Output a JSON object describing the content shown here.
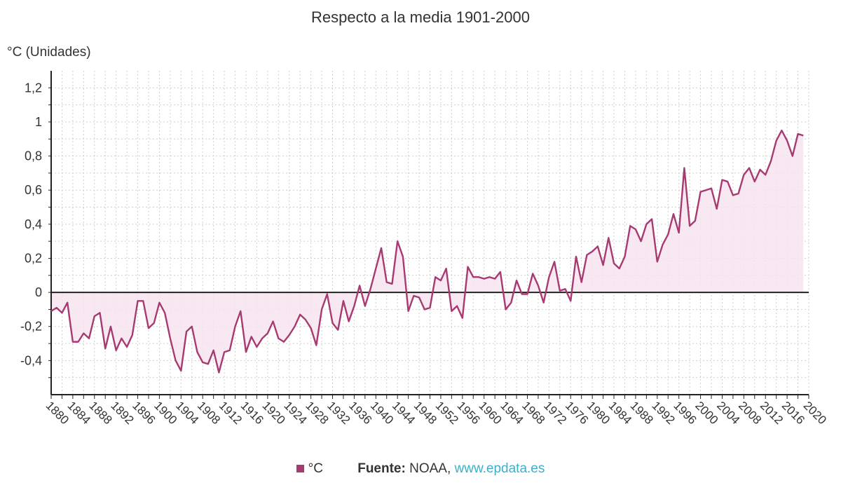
{
  "chart_data": {
    "type": "line",
    "title": "Respecto a la media 1901-2000",
    "ylabel": "°C (Unidades)",
    "xlabel": "",
    "series": [
      {
        "name": "°C",
        "color": "#a83a72",
        "x": [
          1880,
          1881,
          1882,
          1883,
          1884,
          1885,
          1886,
          1887,
          1888,
          1889,
          1890,
          1891,
          1892,
          1893,
          1894,
          1895,
          1896,
          1897,
          1898,
          1899,
          1900,
          1901,
          1902,
          1903,
          1904,
          1905,
          1906,
          1907,
          1908,
          1909,
          1910,
          1911,
          1912,
          1913,
          1914,
          1915,
          1916,
          1917,
          1918,
          1919,
          1920,
          1921,
          1922,
          1923,
          1924,
          1925,
          1926,
          1927,
          1928,
          1929,
          1930,
          1931,
          1932,
          1933,
          1934,
          1935,
          1936,
          1937,
          1938,
          1939,
          1940,
          1941,
          1942,
          1943,
          1944,
          1945,
          1946,
          1947,
          1948,
          1949,
          1950,
          1951,
          1952,
          1953,
          1954,
          1955,
          1956,
          1957,
          1958,
          1959,
          1960,
          1961,
          1962,
          1963,
          1964,
          1965,
          1966,
          1967,
          1968,
          1969,
          1970,
          1971,
          1972,
          1973,
          1974,
          1975,
          1976,
          1977,
          1978,
          1979,
          1980,
          1981,
          1982,
          1983,
          1984,
          1985,
          1986,
          1987,
          1988,
          1989,
          1990,
          1991,
          1992,
          1993,
          1994,
          1995,
          1996,
          1997,
          1998,
          1999,
          2000,
          2001,
          2002,
          2003,
          2004,
          2005,
          2006,
          2007,
          2008,
          2009,
          2010,
          2011,
          2012,
          2013,
          2014,
          2015,
          2016,
          2017,
          2018,
          2019
        ],
        "values": [
          -0.11,
          -0.09,
          -0.12,
          -0.06,
          -0.29,
          -0.29,
          -0.24,
          -0.27,
          -0.14,
          -0.12,
          -0.33,
          -0.2,
          -0.34,
          -0.27,
          -0.32,
          -0.25,
          -0.05,
          -0.05,
          -0.21,
          -0.18,
          -0.06,
          -0.12,
          -0.27,
          -0.4,
          -0.46,
          -0.23,
          -0.2,
          -0.35,
          -0.41,
          -0.42,
          -0.34,
          -0.47,
          -0.35,
          -0.34,
          -0.2,
          -0.11,
          -0.35,
          -0.26,
          -0.32,
          -0.27,
          -0.24,
          -0.17,
          -0.27,
          -0.29,
          -0.25,
          -0.2,
          -0.13,
          -0.16,
          -0.21,
          -0.31,
          -0.1,
          -0.01,
          -0.18,
          -0.22,
          -0.05,
          -0.17,
          -0.08,
          0.04,
          -0.08,
          0.02,
          0.14,
          0.26,
          0.06,
          0.05,
          0.3,
          0.21,
          -0.11,
          -0.02,
          -0.03,
          -0.1,
          -0.09,
          0.09,
          0.07,
          0.14,
          -0.11,
          -0.08,
          -0.15,
          0.15,
          0.09,
          0.09,
          0.08,
          0.09,
          0.08,
          0.12,
          -0.1,
          -0.06,
          0.07,
          -0.01,
          -0.01,
          0.11,
          0.04,
          -0.06,
          0.09,
          0.18,
          0.01,
          0.02,
          -0.05,
          0.21,
          0.06,
          0.22,
          0.24,
          0.27,
          0.16,
          0.32,
          0.17,
          0.14,
          0.21,
          0.39,
          0.37,
          0.3,
          0.4,
          0.43,
          0.18,
          0.28,
          0.34,
          0.46,
          0.35,
          0.73,
          0.39,
          0.42,
          0.59,
          0.6,
          0.61,
          0.49,
          0.66,
          0.65,
          0.57,
          0.58,
          0.69,
          0.73,
          0.65,
          0.72,
          0.69,
          0.77,
          0.89,
          0.95,
          0.89,
          0.8,
          0.93,
          0.92
        ]
      }
    ],
    "xlim": [
      1880,
      2020
    ],
    "ylim": [
      -0.6,
      1.3
    ],
    "xticks": [
      1880,
      1884,
      1888,
      1892,
      1896,
      1900,
      1904,
      1908,
      1912,
      1916,
      1920,
      1924,
      1928,
      1932,
      1936,
      1940,
      1944,
      1948,
      1952,
      1956,
      1960,
      1964,
      1968,
      1972,
      1976,
      1980,
      1984,
      1988,
      1992,
      1996,
      2000,
      2004,
      2008,
      2012,
      2016,
      2020
    ],
    "yticks": [
      {
        "value": 1.2,
        "label": "1,2"
      },
      {
        "value": 1.0,
        "label": "1"
      },
      {
        "value": 0.8,
        "label": "0,8"
      },
      {
        "value": 0.6,
        "label": "0,6"
      },
      {
        "value": 0.4,
        "label": "0,4"
      },
      {
        "value": 0.2,
        "label": "0,2"
      },
      {
        "value": 0.0,
        "label": "0"
      },
      {
        "value": -0.2,
        "label": "-0,2"
      },
      {
        "value": -0.4,
        "label": "-0,4"
      }
    ],
    "grid": true,
    "fill_color": "#f6e4ef",
    "grid_color": "#cfcfcf",
    "axis_color": "#222222"
  },
  "legend": {
    "label": "°C",
    "color": "#a83a72"
  },
  "footer": {
    "source_label": "Fuente:",
    "source_name": "NOAA,",
    "source_link": "www.epdata.es",
    "link_color": "#3bb0c9"
  }
}
